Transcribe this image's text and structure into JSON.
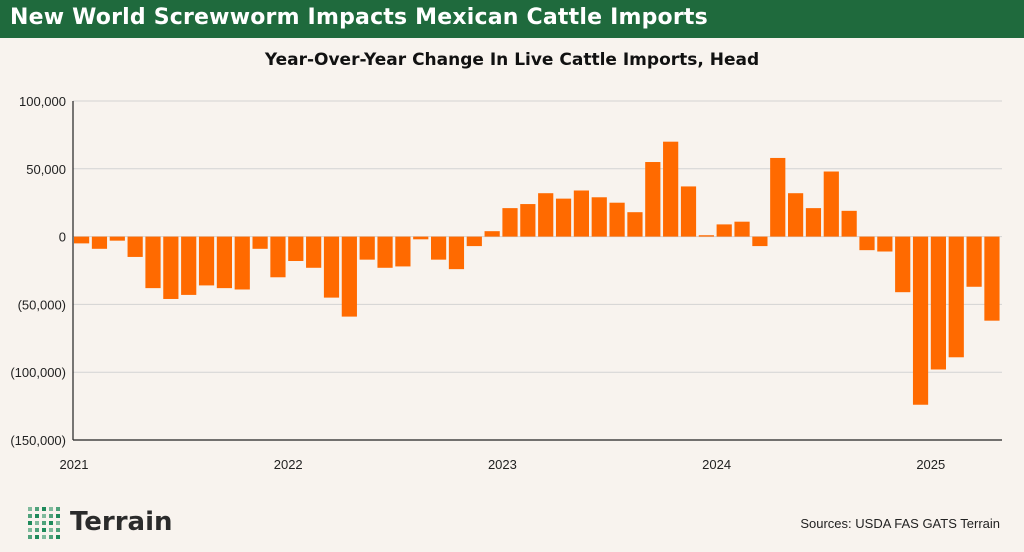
{
  "header": {
    "title": "New World Screwworm Impacts Mexican Cattle Imports"
  },
  "brand": {
    "name": "Terrain",
    "logo_icon": "dot-grid-logo-icon"
  },
  "sources": "Sources: USDA FAS GATS Terrain",
  "colors": {
    "header_bg": "#1f6a3d",
    "bar": "#ff6a00",
    "grid": "#d3d3d3",
    "background": "#f8f3ee",
    "logo_dots": "#1f8a5b"
  },
  "chart_data": {
    "type": "bar",
    "title": "Year-Over-Year Change In Live Cattle Imports, Head",
    "xlabel": "",
    "ylabel": "",
    "ylim": [
      -150000,
      100000
    ],
    "yticks": [
      100000,
      50000,
      0,
      -50000,
      -100000,
      -150000
    ],
    "ytick_labels": [
      "100,000",
      "50,000",
      "0",
      "(50,000)",
      "(100,000)",
      "(150,000)"
    ],
    "xtick_labels": [
      "2021",
      "2022",
      "2023",
      "2024",
      "2025"
    ],
    "grid": true,
    "categories": [
      "2021-01",
      "2021-02",
      "2021-03",
      "2021-04",
      "2021-05",
      "2021-06",
      "2021-07",
      "2021-08",
      "2021-09",
      "2021-10",
      "2021-11",
      "2021-12",
      "2022-01",
      "2022-02",
      "2022-03",
      "2022-04",
      "2022-05",
      "2022-06",
      "2022-07",
      "2022-08",
      "2022-09",
      "2022-10",
      "2022-11",
      "2022-12",
      "2023-01",
      "2023-02",
      "2023-03",
      "2023-04",
      "2023-05",
      "2023-06",
      "2023-07",
      "2023-08",
      "2023-09",
      "2023-10",
      "2023-11",
      "2023-12",
      "2024-01",
      "2024-02",
      "2024-03",
      "2024-04",
      "2024-05",
      "2024-06",
      "2024-07",
      "2024-08",
      "2024-09",
      "2024-10",
      "2024-11",
      "2024-12",
      "2025-01",
      "2025-02",
      "2025-03",
      "2025-04"
    ],
    "values": [
      -5000,
      -9000,
      -3000,
      -15000,
      -38000,
      -46000,
      -43000,
      -36000,
      -38000,
      -39000,
      -9000,
      -30000,
      -18000,
      -23000,
      -45000,
      -59000,
      -17000,
      -23000,
      -22000,
      -2000,
      -17000,
      -24000,
      -7000,
      4000,
      21000,
      24000,
      32000,
      28000,
      34000,
      29000,
      25000,
      18000,
      55000,
      70000,
      37000,
      1000,
      9000,
      11000,
      -7000,
      58000,
      32000,
      21000,
      48000,
      19000,
      -10000,
      -11000,
      -41000,
      -124000,
      -98000,
      -89000,
      -37000,
      -62000
    ]
  }
}
